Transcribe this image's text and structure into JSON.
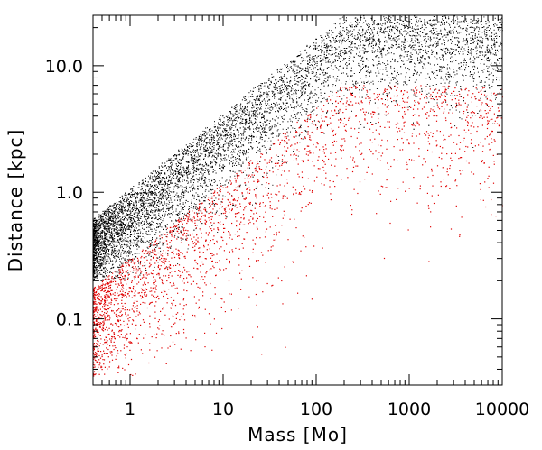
{
  "chart_data": {
    "type": "scatter",
    "title": "",
    "xlabel": "Mass [Mo]",
    "ylabel": "Distance [kpc]",
    "xscale": "log",
    "yscale": "log",
    "xlim": [
      0.4,
      10000
    ],
    "ylim": [
      0.03,
      25
    ],
    "grid": false,
    "legend": "none",
    "x_ticks": [
      {
        "value": 1,
        "label": "1"
      },
      {
        "value": 10,
        "label": "10"
      },
      {
        "value": 100,
        "label": "100"
      },
      {
        "value": 1000,
        "label": "1000"
      },
      {
        "value": 10000,
        "label": "10000"
      }
    ],
    "y_ticks": [
      {
        "value": 0.1,
        "label": "0.1"
      },
      {
        "value": 1.0,
        "label": "1.0"
      },
      {
        "value": 10.0,
        "label": "10.0"
      }
    ],
    "series": [
      {
        "color": "#000000",
        "description_of_extent": "dense band bounded above by distance ≈ 1.05·M^0.6, capped at 25 kpc",
        "x": [
          0.5,
          0.7,
          1,
          1.5,
          2,
          3,
          5,
          7,
          10,
          15,
          20,
          30,
          50,
          70,
          100,
          150,
          200,
          300,
          500,
          700,
          1000,
          1500,
          2000,
          3000,
          5000,
          0.6,
          1.2,
          2.5,
          4,
          8,
          12,
          25,
          40,
          60,
          90,
          130,
          250,
          400,
          800,
          1200,
          2500,
          4000
        ],
        "y": [
          0.6,
          0.9,
          0.8,
          1.3,
          1.2,
          2.0,
          2.6,
          3.5,
          4.2,
          5.6,
          7.0,
          9.5,
          12.0,
          15.0,
          14.0,
          18.0,
          20.0,
          19.0,
          22.0,
          20.0,
          21.0,
          23.0,
          22.0,
          20.0,
          18.0,
          0.45,
          0.7,
          1.0,
          1.6,
          2.2,
          3.0,
          4.5,
          6.0,
          8.0,
          9.0,
          11.0,
          12.0,
          14.0,
          13.0,
          15.0,
          12.0,
          11.0
        ]
      },
      {
        "color": "#e00000",
        "x": [
          0.5,
          0.7,
          1,
          1.5,
          2,
          3,
          5,
          7,
          10,
          15,
          20,
          30,
          50,
          70,
          100,
          150,
          200,
          300,
          500,
          700,
          1000,
          1500,
          2000,
          3000,
          5000,
          0.6,
          1.2,
          2.5,
          4,
          8,
          12,
          25,
          40,
          60,
          90,
          130,
          250,
          400,
          800,
          1200,
          2500,
          4000
        ],
        "y": [
          0.25,
          0.3,
          0.35,
          0.4,
          0.5,
          0.55,
          0.7,
          0.8,
          1.0,
          1.1,
          1.3,
          1.5,
          1.8,
          2.0,
          2.5,
          2.8,
          3.0,
          3.5,
          4.0,
          4.5,
          5.0,
          5.5,
          6.0,
          6.5,
          7.0,
          0.12,
          0.15,
          0.2,
          0.25,
          0.3,
          0.35,
          0.5,
          0.6,
          0.8,
          1.0,
          1.2,
          1.5,
          1.8,
          2.2,
          2.5,
          3.0,
          3.5
        ]
      }
    ]
  }
}
